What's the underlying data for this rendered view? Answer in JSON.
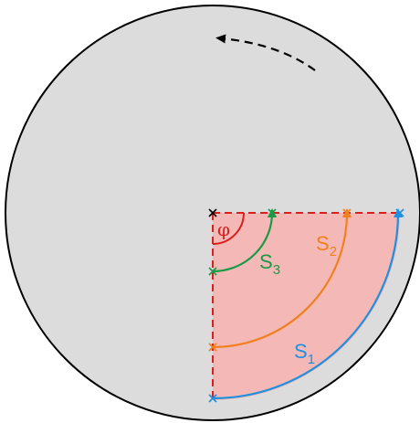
{
  "diagram": {
    "angle_label": "φ",
    "rotation": "counterclockwise",
    "paths": [
      {
        "id": "s1",
        "name": "S",
        "index": "1",
        "color": "#1e90e0"
      },
      {
        "id": "s2",
        "name": "S",
        "index": "2",
        "color": "#f08020"
      },
      {
        "id": "s3",
        "name": "S",
        "index": "3",
        "color": "#1a9a48"
      }
    ],
    "colors": {
      "disk_fill": "#dcdcdc",
      "disk_stroke": "#000000",
      "sector_fill": "#f4b8b6",
      "axis": "#d8201e",
      "angle_arc": "#d8201e",
      "center_mark": "#000000",
      "rotation_arrow": "#000000"
    }
  }
}
